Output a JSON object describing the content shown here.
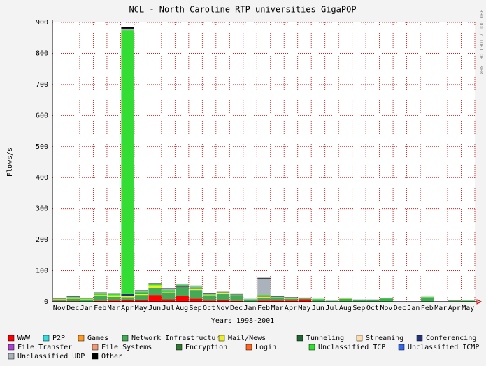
{
  "chart_data": {
    "type": "stacked_bar",
    "title": "NCL - North Caroline RTP universities GigaPOP",
    "watermark": "RRDTOOL / TOBI OETIKER",
    "y_label": "Flows/s",
    "x_label": "Years 1998-2001",
    "categories": [
      "Nov",
      "Dec",
      "Jan",
      "Feb",
      "Mar",
      "Apr",
      "May",
      "Jun",
      "Jul",
      "Aug",
      "Sep",
      "Oct",
      "Nov",
      "Dec",
      "Jan",
      "Feb",
      "Mar",
      "Apr",
      "May",
      "Jun",
      "Jul",
      "Aug",
      "Sep",
      "Oct",
      "Nov",
      "Dec",
      "Jan",
      "Feb",
      "Mar",
      "Apr",
      "May"
    ],
    "ylim": [
      0,
      900
    ],
    "yticks": [
      0,
      100,
      200,
      300,
      400,
      500,
      600,
      700,
      800,
      900
    ],
    "grid": true,
    "series": [
      {
        "name": "WWW",
        "color": "#ff0000",
        "values": [
          2,
          2,
          1,
          3,
          4,
          5,
          5,
          20,
          8,
          18,
          10,
          4,
          5,
          3,
          1,
          4,
          4,
          4,
          8,
          1,
          0,
          1,
          1,
          1,
          1,
          0,
          0,
          1,
          0,
          0,
          0
        ]
      },
      {
        "name": "P2P",
        "color": "#33dddd",
        "values": [
          0,
          0,
          0,
          0,
          0,
          0,
          0,
          0,
          0,
          0,
          0,
          0,
          0,
          0,
          0,
          0,
          0,
          0,
          0,
          0,
          0,
          0,
          0,
          0,
          0,
          0,
          0,
          0,
          0,
          0,
          0
        ]
      },
      {
        "name": "Games",
        "color": "#ff9922",
        "values": [
          0,
          0,
          0,
          0,
          0,
          0,
          0,
          0,
          0,
          0,
          0,
          0,
          0,
          0,
          0,
          0,
          0,
          0,
          0,
          0,
          0,
          0,
          0,
          0,
          0,
          0,
          0,
          0,
          0,
          0,
          0
        ]
      },
      {
        "name": "Network_Infrastructure",
        "color": "#44aa55",
        "values": [
          3,
          8,
          5,
          15,
          12,
          10,
          15,
          25,
          20,
          25,
          28,
          15,
          20,
          17,
          5,
          10,
          8,
          6,
          3,
          5,
          2,
          8,
          5,
          5,
          9,
          1,
          1,
          12,
          1,
          2,
          3
        ]
      },
      {
        "name": "Mail/News",
        "color": "#eeee22",
        "values": [
          3,
          2,
          2,
          2,
          3,
          3,
          5,
          8,
          3,
          3,
          3,
          2,
          2,
          1,
          1,
          3,
          1,
          1,
          1,
          1,
          0,
          1,
          0,
          0,
          0,
          0,
          0,
          1,
          0,
          0,
          0
        ]
      },
      {
        "name": "Tunneling",
        "color": "#226633",
        "values": [
          0,
          0,
          0,
          0,
          0,
          0,
          0,
          0,
          0,
          0,
          0,
          0,
          0,
          0,
          0,
          0,
          0,
          0,
          0,
          0,
          0,
          0,
          0,
          0,
          0,
          0,
          0,
          0,
          0,
          0,
          0
        ]
      },
      {
        "name": "Streaming",
        "color": "#ffddaa",
        "values": [
          0,
          0,
          0,
          0,
          0,
          0,
          0,
          0,
          0,
          0,
          0,
          0,
          0,
          0,
          0,
          0,
          0,
          0,
          0,
          0,
          0,
          0,
          0,
          0,
          0,
          0,
          0,
          0,
          0,
          0,
          0
        ]
      },
      {
        "name": "Conferencing",
        "color": "#223377",
        "values": [
          0,
          1,
          0,
          1,
          0,
          7,
          1,
          0,
          1,
          3,
          1,
          0,
          0,
          0,
          0,
          1,
          0,
          0,
          0,
          0,
          0,
          0,
          0,
          0,
          0,
          0,
          0,
          0,
          0,
          0,
          0
        ]
      },
      {
        "name": "File_Transfer",
        "color": "#aa44cc",
        "values": [
          0,
          0,
          0,
          0,
          0,
          0,
          0,
          0,
          0,
          0,
          0,
          0,
          0,
          0,
          0,
          0,
          0,
          0,
          0,
          0,
          0,
          0,
          0,
          0,
          0,
          0,
          0,
          0,
          0,
          0,
          0
        ]
      },
      {
        "name": "File_Systems",
        "color": "#ee9977",
        "values": [
          0,
          0,
          0,
          0,
          0,
          0,
          0,
          0,
          0,
          0,
          0,
          0,
          0,
          0,
          0,
          0,
          0,
          0,
          0,
          0,
          0,
          0,
          0,
          0,
          0,
          0,
          0,
          0,
          0,
          0,
          0
        ]
      },
      {
        "name": "Encryption",
        "color": "#337733",
        "values": [
          0,
          0,
          0,
          0,
          0,
          0,
          0,
          0,
          0,
          0,
          0,
          0,
          0,
          0,
          0,
          0,
          0,
          0,
          0,
          0,
          0,
          0,
          0,
          0,
          0,
          0,
          0,
          0,
          0,
          0,
          0
        ]
      },
      {
        "name": "Login",
        "color": "#ff6622",
        "values": [
          0,
          0,
          0,
          0,
          0,
          0,
          0,
          0,
          0,
          0,
          0,
          0,
          0,
          0,
          0,
          0,
          0,
          0,
          0,
          0,
          0,
          0,
          0,
          0,
          0,
          0,
          0,
          0,
          0,
          0,
          0
        ]
      },
      {
        "name": "Unclassified_TCP",
        "color": "#33dd33",
        "values": [
          1,
          2,
          2,
          5,
          6,
          850,
          7,
          5,
          6,
          5,
          5,
          3,
          3,
          2,
          1,
          2,
          2,
          2,
          1,
          2,
          1,
          1,
          1,
          1,
          2,
          0,
          0,
          2,
          0,
          1,
          1
        ]
      },
      {
        "name": "Unclassified_ICMP",
        "color": "#3366ee",
        "values": [
          0,
          0,
          0,
          0,
          0,
          0,
          0,
          0,
          0,
          0,
          0,
          0,
          0,
          0,
          0,
          0,
          0,
          0,
          0,
          0,
          0,
          0,
          0,
          0,
          0,
          0,
          0,
          0,
          0,
          0,
          0
        ]
      },
      {
        "name": "Unclassified_UDP",
        "color": "#aab3bb",
        "values": [
          0,
          2,
          1,
          3,
          2,
          5,
          3,
          1,
          3,
          3,
          4,
          2,
          1,
          1,
          2,
          55,
          2,
          1,
          1,
          1,
          1,
          1,
          1,
          1,
          1,
          1,
          1,
          1,
          1,
          1,
          1
        ]
      },
      {
        "name": "Other",
        "color": "#000000",
        "values": [
          1,
          1,
          1,
          1,
          1,
          5,
          1,
          1,
          1,
          1,
          1,
          1,
          1,
          1,
          0,
          2,
          1,
          1,
          0,
          0,
          0,
          0,
          0,
          0,
          0,
          0,
          0,
          0,
          0,
          1,
          1
        ]
      }
    ]
  }
}
